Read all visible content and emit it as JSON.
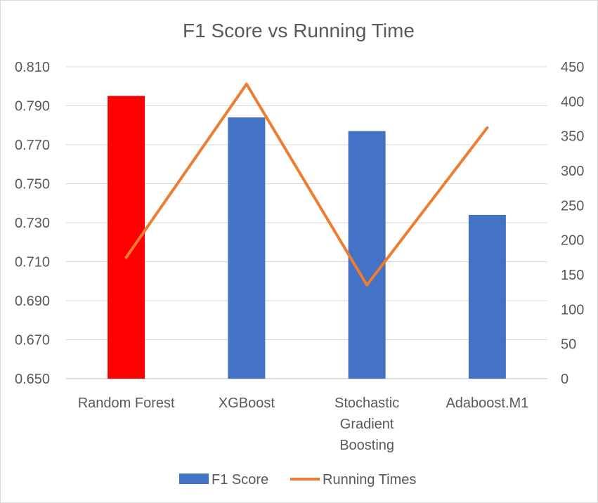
{
  "chart_data": {
    "type": "bar+line",
    "title": "F1 Score vs Running Time",
    "categories": [
      [
        "Random Forest"
      ],
      [
        "XGBoost"
      ],
      [
        "Stochastic",
        "Gradient",
        "Boosting"
      ],
      [
        "Adaboost.M1"
      ]
    ],
    "series": [
      {
        "name": "F1 Score",
        "type": "bar",
        "axis": "left",
        "values": [
          0.795,
          0.784,
          0.777,
          0.734
        ],
        "color": "#4472c4",
        "point_colors": [
          "#ff0000",
          "#4472c4",
          "#4472c4",
          "#4472c4"
        ]
      },
      {
        "name": "Running Times",
        "type": "line",
        "axis": "right",
        "values": [
          175,
          425,
          135,
          362
        ],
        "color": "#ed7d31"
      }
    ],
    "y_left": {
      "min": 0.65,
      "max": 0.81,
      "step": 0.02,
      "tick_labels": [
        "0.650",
        "0.670",
        "0.690",
        "0.710",
        "0.730",
        "0.750",
        "0.770",
        "0.790",
        "0.810"
      ]
    },
    "y_right": {
      "min": 0,
      "max": 450,
      "step": 50,
      "tick_labels": [
        "0",
        "50",
        "100",
        "150",
        "200",
        "250",
        "300",
        "350",
        "400",
        "450"
      ]
    },
    "grid": true,
    "legend": "bottom"
  }
}
